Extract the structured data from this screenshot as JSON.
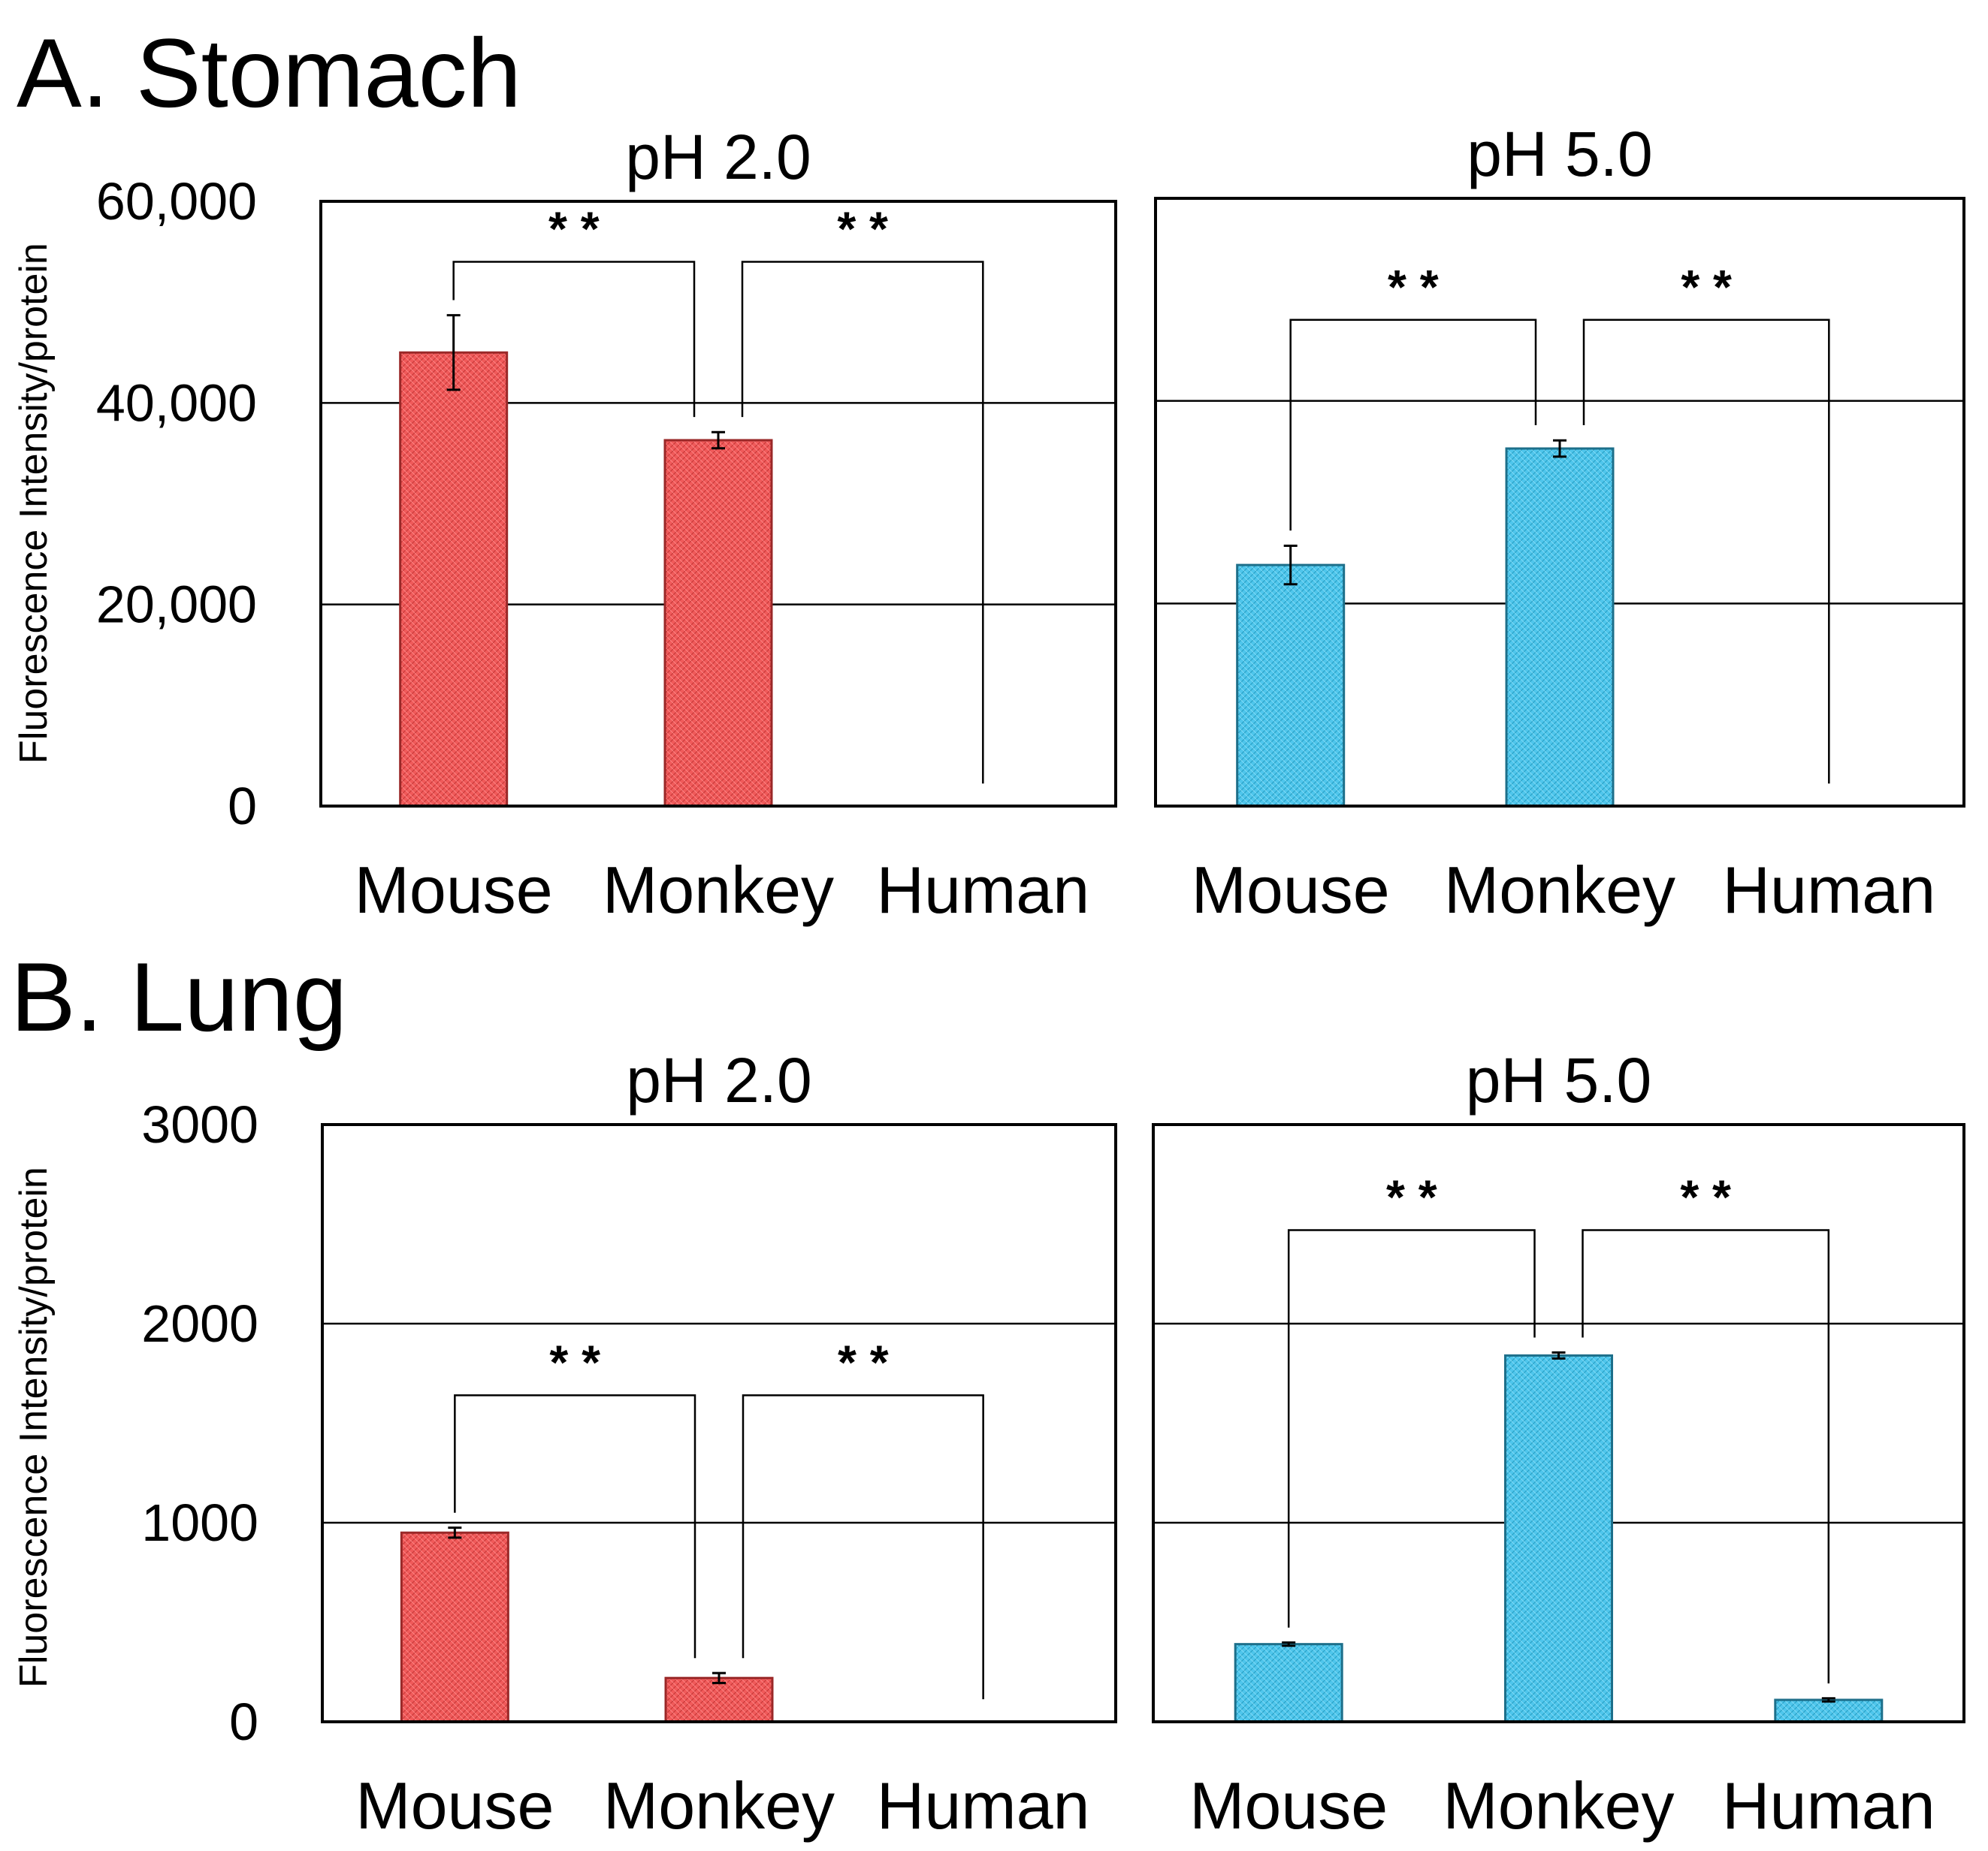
{
  "panels": [
    {
      "label": "A. Stomach"
    },
    {
      "label": "B. Lung"
    }
  ],
  "colors": {
    "acid": "#f05a5a",
    "neutral": "#4fc6ec",
    "axis": "#000000"
  },
  "chart_data": [
    {
      "type": "bar",
      "panel": "A. Stomach",
      "title": "pH 2.0",
      "ylabel": "Fluorescence Intensity/protein",
      "categories": [
        "Mouse",
        "Monkey",
        "Human"
      ],
      "values": [
        45000,
        36300,
        0
      ],
      "errors": [
        3700,
        800,
        0
      ],
      "ylim": [
        0,
        60000
      ],
      "yticks": [
        0,
        20000,
        40000,
        60000
      ],
      "ytick_labels": [
        "0",
        "20,000",
        "40,000",
        "60,000"
      ],
      "gridlines": [
        20000,
        40000
      ],
      "color": "acid",
      "significance": [
        {
          "from": 0,
          "to": 1,
          "label": "* *"
        },
        {
          "from": 1,
          "to": 2,
          "label": "* *"
        }
      ]
    },
    {
      "type": "bar",
      "panel": "A. Stomach",
      "title": "pH 5.0",
      "categories": [
        "Mouse",
        "Monkey",
        "Human"
      ],
      "values": [
        23800,
        35300,
        0
      ],
      "errors": [
        1900,
        800,
        0
      ],
      "ylim": [
        0,
        60000
      ],
      "gridlines": [
        20000,
        40000
      ],
      "color": "neutral",
      "significance": [
        {
          "from": 0,
          "to": 1,
          "label": "* *"
        },
        {
          "from": 1,
          "to": 2,
          "label": "* *"
        }
      ]
    },
    {
      "type": "bar",
      "panel": "B. Lung",
      "title": "pH 2.0",
      "ylabel": "Fluorescence Intensity/protein",
      "categories": [
        "Mouse",
        "Monkey",
        "Human"
      ],
      "values": [
        950,
        220,
        0
      ],
      "errors": [
        25,
        25,
        0
      ],
      "ylim": [
        0,
        3000
      ],
      "yticks": [
        0,
        1000,
        2000,
        3000
      ],
      "ytick_labels": [
        "0",
        "1000",
        "2000",
        "3000"
      ],
      "gridlines": [
        1000,
        2000
      ],
      "color": "acid",
      "significance": [
        {
          "from": 0,
          "to": 1,
          "label": "* *"
        },
        {
          "from": 1,
          "to": 2,
          "label": "* *"
        }
      ]
    },
    {
      "type": "bar",
      "panel": "B. Lung",
      "title": "pH 5.0",
      "categories": [
        "Mouse",
        "Monkey",
        "Human"
      ],
      "values": [
        390,
        1840,
        110
      ],
      "errors": [
        8,
        15,
        8
      ],
      "ylim": [
        0,
        3000
      ],
      "gridlines": [
        1000,
        2000
      ],
      "color": "neutral",
      "significance": [
        {
          "from": 0,
          "to": 1,
          "label": "* *"
        },
        {
          "from": 1,
          "to": 2,
          "label": "* *"
        }
      ]
    }
  ]
}
